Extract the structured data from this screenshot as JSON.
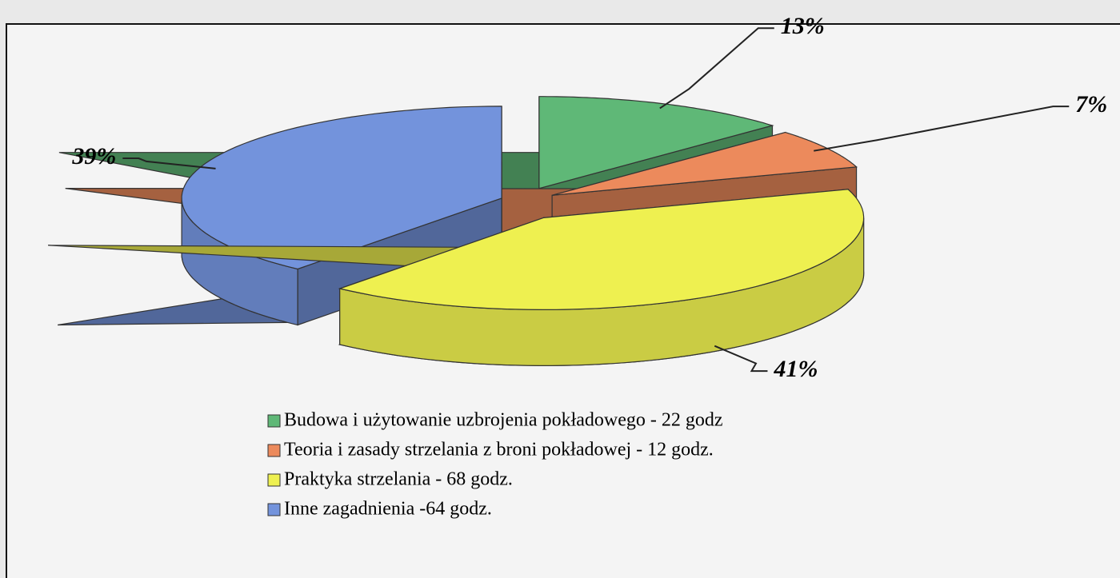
{
  "chart_data": {
    "type": "pie",
    "categories": [
      "Budowa i użytowanie uzbrojenia pokładowego - 22 godz",
      "Teoria i zasady strzelania z broni pokładowej - 12 godz.",
      "Praktyka strzelania - 68 godz.",
      "Inne zagadnienia -64 godz."
    ],
    "values": [
      13,
      7,
      41,
      39
    ],
    "value_labels": [
      "13%",
      "7%",
      "41%",
      "39%"
    ],
    "colors": [
      "#5fb877",
      "#ec8a5c",
      "#eef050",
      "#7393dc"
    ],
    "legend": "bottom"
  }
}
